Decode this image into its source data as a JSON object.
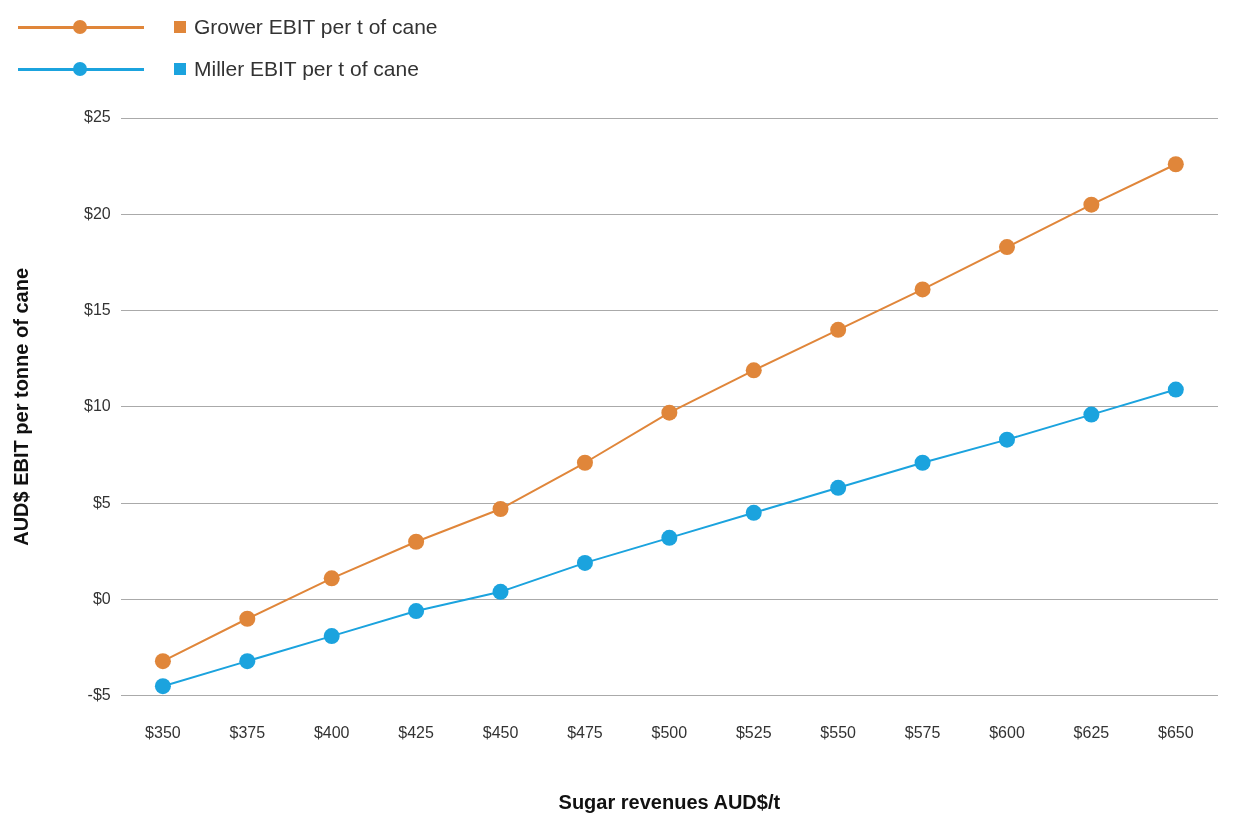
{
  "chart_data": {
    "type": "line",
    "xlabel": "Sugar revenues AUD$/t",
    "ylabel": "AUD$ EBIT per tonne of cane",
    "categories": [
      "$350",
      "$375",
      "$400",
      "$425",
      "$450",
      "$475",
      "$500",
      "$525",
      "$550",
      "$575",
      "$600",
      "$625",
      "$650"
    ],
    "series": [
      {
        "name": "Grower EBIT per t of cane",
        "color": "#e0863a",
        "values": [
          -3.2,
          -1.0,
          1.1,
          3.0,
          4.7,
          7.1,
          9.7,
          11.9,
          14.0,
          16.1,
          18.3,
          20.5,
          22.6
        ]
      },
      {
        "name": "Miller EBIT per t of cane",
        "color": "#1ba3de",
        "values": [
          -4.5,
          -3.2,
          -1.9,
          -0.6,
          0.4,
          1.9,
          3.2,
          4.5,
          5.8,
          7.1,
          8.3,
          9.6,
          10.9
        ]
      }
    ],
    "ylim": [
      -5,
      25
    ],
    "yticks": [
      {
        "value": -5,
        "label": "-$5"
      },
      {
        "value": 0,
        "label": "$0"
      },
      {
        "value": 5,
        "label": "$5"
      },
      {
        "value": 10,
        "label": "$10"
      },
      {
        "value": 15,
        "label": "$15"
      },
      {
        "value": 20,
        "label": "$20"
      },
      {
        "value": 25,
        "label": "$25"
      }
    ],
    "grid": "y",
    "legend": "top left",
    "marker": "circle",
    "line_style": "solid"
  }
}
